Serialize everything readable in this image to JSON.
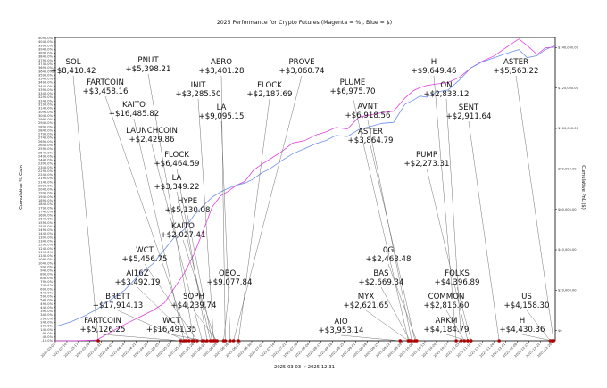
{
  "chart_data": {
    "type": "line",
    "title": "2025 Performance for Crypto Futures (Magenta = % , Blue = $)",
    "xlabel": "2025-03-03 → 2025-12-31",
    "ylabel": "Cumulative % Gain",
    "y2label": "Cumulative PnL ($)",
    "x_range": [
      "2025-03-03",
      "2025-12-31"
    ],
    "y_range_pct": [
      -10,
      4100
    ],
    "y2_range_usd": [
      -5000,
      145000
    ],
    "grid": false,
    "left_ticks": [
      "-10.0%",
      "40.0%",
      "90.0%",
      "140.0%",
      "190.0%",
      "240.0%",
      "290.0%",
      "340.0%",
      "390.0%",
      "440.0%",
      "490.0%",
      "540.0%",
      "590.0%",
      "640.0%",
      "690.0%",
      "740.0%",
      "790.0%",
      "840.0%",
      "890.0%",
      "940.0%",
      "990.0%",
      "1040.0%",
      "1090.0%",
      "1140.0%",
      "1190.0%",
      "1240.0%",
      "1290.0%",
      "1340.0%",
      "1390.0%",
      "1440.0%",
      "1490.0%",
      "1540.0%",
      "1590.0%",
      "1640.0%",
      "1690.0%",
      "1740.0%",
      "1790.0%",
      "1840.0%",
      "1890.0%",
      "1940.0%",
      "1990.0%",
      "2040.0%",
      "2090.0%",
      "2140.0%",
      "2190.0%",
      "2240.0%",
      "2290.0%",
      "2340.0%",
      "2390.0%",
      "2440.0%",
      "2490.0%",
      "2540.0%",
      "2590.0%",
      "2640.0%",
      "2690.0%",
      "2740.0%",
      "2790.0%",
      "2840.0%",
      "2890.0%",
      "2940.0%",
      "2990.0%",
      "3040.0%",
      "3090.0%",
      "3140.0%",
      "3190.0%",
      "3240.0%",
      "3290.0%",
      "3340.0%",
      "3390.0%",
      "3440.0%",
      "3490.0%",
      "3540.0%",
      "3590.0%",
      "3640.0%",
      "3690.0%",
      "3740.0%",
      "3790.0%",
      "3840.0%",
      "3890.0%",
      "3940.0%",
      "3990.0%",
      "4040.0%",
      "4090.0%"
    ],
    "right_ticks": [
      "$0",
      "$20,000.00",
      "$40,000.00",
      "$60,000.00",
      "$80,000.00",
      "$100,000.00",
      "$120,000.00",
      "$140,000.00"
    ],
    "right_tick_values": [
      0,
      20000,
      40000,
      60000,
      80000,
      100000,
      120000,
      140000
    ],
    "x_ticks": [
      "2025-03-03",
      "2025-03-10",
      "2025-03-17",
      "2025-03-24",
      "2025-03-31",
      "2025-04-07",
      "2025-04-14",
      "2025-04-21",
      "2025-04-28",
      "2025-05-05",
      "2025-05-12",
      "2025-05-19",
      "2025-05-26",
      "2025-06-02",
      "2025-06-09",
      "2025-06-16",
      "2025-06-23",
      "2025-06-30",
      "2025-07-07",
      "2025-07-14",
      "2025-07-21",
      "2025-07-28",
      "2025-08-04",
      "2025-08-11",
      "2025-08-18",
      "2025-08-25",
      "2025-09-01",
      "2025-09-08",
      "2025-09-15",
      "2025-09-22",
      "2025-09-29",
      "2025-10-06",
      "2025-10-13",
      "2025-10-20",
      "2025-10-27",
      "2025-11-03",
      "2025-11-10",
      "2025-11-17",
      "2025-11-24",
      "2025-12-01",
      "2025-12-08",
      "2025-12-15",
      "2025-12-22",
      "2025-12-29"
    ],
    "series": [
      {
        "color": "#e040e0",
        "x": [
          "2025-03-03",
          "2025-03-12",
          "2025-03-20",
          "2025-03-28",
          "2025-04-05",
          "2025-04-14",
          "2025-04-22",
          "2025-05-01",
          "2025-05-08",
          "2025-05-14",
          "2025-05-20",
          "2025-05-26",
          "2025-06-01",
          "2025-06-06",
          "2025-06-11",
          "2025-06-16",
          "2025-06-21",
          "2025-06-26",
          "2025-07-01",
          "2025-07-06",
          "2025-07-11",
          "2025-07-18",
          "2025-07-25",
          "2025-08-01",
          "2025-08-08",
          "2025-08-14",
          "2025-08-20",
          "2025-08-27",
          "2025-09-03",
          "2025-09-10",
          "2025-09-17",
          "2025-09-24",
          "2025-10-01",
          "2025-10-06",
          "2025-10-10",
          "2025-10-14",
          "2025-10-20",
          "2025-10-27",
          "2025-11-03",
          "2025-11-10",
          "2025-11-17",
          "2025-11-24",
          "2025-12-01",
          "2025-12-05",
          "2025-12-09",
          "2025-12-14",
          "2025-12-20",
          "2025-12-25",
          "2025-12-31"
        ],
        "y": [
          -10,
          -10,
          -5,
          0,
          100,
          210,
          300,
          400,
          500,
          700,
          900,
          1160,
          1500,
          1800,
          1950,
          2020,
          2100,
          2150,
          2300,
          2380,
          2450,
          2550,
          2670,
          2700,
          2780,
          2820,
          2880,
          2860,
          3020,
          3050,
          3080,
          3100,
          3280,
          3380,
          3420,
          3450,
          3470,
          3490,
          3560,
          3690,
          3780,
          3850,
          3960,
          4020,
          4080,
          3990,
          3870,
          3960,
          3970
        ]
      },
      {
        "color": "#6d8fe8",
        "x": [
          "2025-03-03",
          "2025-03-12",
          "2025-03-20",
          "2025-03-28",
          "2025-04-05",
          "2025-04-14",
          "2025-04-22",
          "2025-05-01",
          "2025-05-08",
          "2025-05-14",
          "2025-05-20",
          "2025-05-26",
          "2025-06-01",
          "2025-06-06",
          "2025-06-11",
          "2025-06-16",
          "2025-06-21",
          "2025-06-26",
          "2025-07-01",
          "2025-07-06",
          "2025-07-11",
          "2025-07-18",
          "2025-07-25",
          "2025-08-01",
          "2025-08-08",
          "2025-08-14",
          "2025-08-20",
          "2025-08-27",
          "2025-09-03",
          "2025-09-10",
          "2025-09-17",
          "2025-09-24",
          "2025-10-01",
          "2025-10-06",
          "2025-10-10",
          "2025-10-14",
          "2025-10-20",
          "2025-10-27",
          "2025-11-03",
          "2025-11-10",
          "2025-11-17",
          "2025-11-24",
          "2025-12-01",
          "2025-12-05",
          "2025-12-09",
          "2025-12-14",
          "2025-12-20",
          "2025-12-25",
          "2025-12-31"
        ],
        "y": [
          2000,
          4200,
          7000,
          10500,
          15000,
          20000,
          27000,
          33000,
          40000,
          46000,
          50000,
          57000,
          62000,
          66000,
          68500,
          70500,
          72000,
          73000,
          75000,
          78000,
          80000,
          84000,
          87500,
          90000,
          92500,
          94000,
          96500,
          96000,
          99500,
          101000,
          102500,
          103000,
          112000,
          114000,
          116000,
          115500,
          118000,
          119000,
          124000,
          130000,
          133000,
          135000,
          137000,
          138000,
          139000,
          135000,
          136000,
          139000,
          141000
        ]
      }
    ],
    "annotations": [
      {
        "label": "SOL",
        "value": "+$8,410.42",
        "date": "2025-03-29"
      },
      {
        "label": "FARTCOIN",
        "value": "+$3,458.16",
        "date": "2025-05-23"
      },
      {
        "label": "PNUT",
        "value": "+$5,398.21",
        "date": "2025-05-26"
      },
      {
        "label": "KAITO",
        "value": "+$16,485.82",
        "date": "2025-05-20"
      },
      {
        "label": "LAUNCHCOIN",
        "value": "+$2,429.86",
        "date": "2025-05-31"
      },
      {
        "label": "AERO",
        "value": "+$3,401.28",
        "date": "2025-06-14"
      },
      {
        "label": "INIT",
        "value": "+$3,285.50",
        "date": "2025-06-07"
      },
      {
        "label": "LA",
        "value": "+$9,095.15",
        "date": "2025-06-17"
      },
      {
        "label": "FLOCK",
        "value": "+$6,464.59",
        "date": "2025-06-03"
      },
      {
        "label": "LA",
        "value": "+$3,349.22",
        "date": "2025-06-05"
      },
      {
        "label": "HYPE",
        "value": "+$5,130.08",
        "date": "2025-06-06"
      },
      {
        "label": "KAITO",
        "value": "+$2,027.41",
        "date": "2025-06-08"
      },
      {
        "label": "PROVE",
        "value": "+$3,060.74",
        "date": "2025-06-19"
      },
      {
        "label": "FLOCK",
        "value": "+$2,187.69",
        "date": "2025-06-22"
      },
      {
        "label": "PLUME",
        "value": "+$6,975.70",
        "date": "2025-10-03"
      },
      {
        "label": "AVNT",
        "value": "+$6,918.56",
        "date": "2025-10-05"
      },
      {
        "label": "ASTER",
        "value": "+$3,864.79",
        "date": "2025-10-07"
      },
      {
        "label": "H",
        "value": "+$9,649.46",
        "date": "2025-11-01"
      },
      {
        "label": "ON",
        "value": "+$2,833.12",
        "date": "2025-11-04"
      },
      {
        "label": "SENT",
        "value": "+$2,911.64",
        "date": "2025-11-27"
      },
      {
        "label": "ASTER",
        "value": "+$5,563.22",
        "date": "2025-12-30"
      },
      {
        "label": "PUMP",
        "value": "+$2,273.31",
        "date": "2025-11-08"
      },
      {
        "label": "0G",
        "value": "+$2,463.48",
        "date": "2025-10-08"
      },
      {
        "label": "BAS",
        "value": "+$2,669.34",
        "date": "2025-10-04"
      },
      {
        "label": "MYX",
        "value": "+$2,621.65",
        "date": "2025-10-03"
      },
      {
        "label": "AIO",
        "value": "+$3,953.14",
        "date": "2025-09-28"
      },
      {
        "label": "FOLKS",
        "value": "+$4,396.89",
        "date": "2025-11-10"
      },
      {
        "label": "COMMON",
        "value": "+$2,816.60",
        "date": "2025-11-06"
      },
      {
        "label": "ARKM",
        "value": "+$4,184.79",
        "date": "2025-11-08"
      },
      {
        "label": "US",
        "value": "+$4,158.30",
        "date": "2025-12-28"
      },
      {
        "label": "H",
        "value": "+$4,430.36",
        "date": "2025-12-29"
      },
      {
        "label": "WCT",
        "value": "+$5,456.75",
        "date": "2025-05-28"
      },
      {
        "label": "AI16Z",
        "value": "+$3,492.19",
        "date": "2025-05-25"
      },
      {
        "label": "BRETT",
        "value": "+$17,914.13",
        "date": "2025-05-21"
      },
      {
        "label": "FARTCOIN",
        "value": "+$5,126.25",
        "date": "2025-05-18"
      },
      {
        "label": "WCT",
        "value": "+$16,491.35",
        "date": "2025-06-01"
      },
      {
        "label": "SOPH",
        "value": "+$4,239.74",
        "date": "2025-06-09"
      },
      {
        "label": "OBOL",
        "value": "+$9,077.84",
        "date": "2025-06-13"
      }
    ]
  }
}
